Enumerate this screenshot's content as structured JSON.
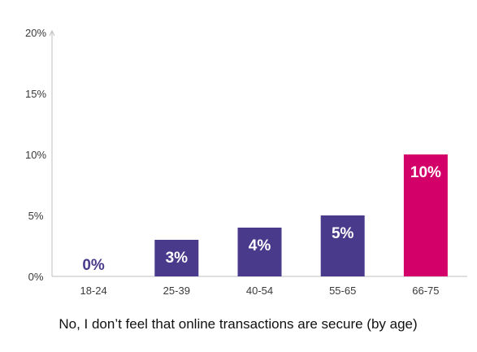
{
  "chart_data": {
    "type": "bar",
    "categories": [
      "18-24",
      "25-39",
      "40-54",
      "55-65",
      "66-75"
    ],
    "values": [
      0,
      3,
      4,
      5,
      10
    ],
    "data_labels": [
      "0%",
      "3%",
      "4%",
      "5%",
      "10%"
    ],
    "y_ticks": [
      0,
      5,
      10,
      15,
      20
    ],
    "y_tick_labels": [
      "0%",
      "5%",
      "10%",
      "15%",
      "20%"
    ],
    "ylim": [
      0,
      20
    ],
    "caption": "No, I don’t feel that online transactions are secure (by age)",
    "grid": false,
    "colors": {
      "bar_default": "#4a3a8c",
      "bar_highlight": "#d4006a",
      "label_on_bar": "#ffffff",
      "label_on_empty": "#4a3a8c",
      "axis": "#bfbfbf"
    },
    "highlight_index": 4
  }
}
